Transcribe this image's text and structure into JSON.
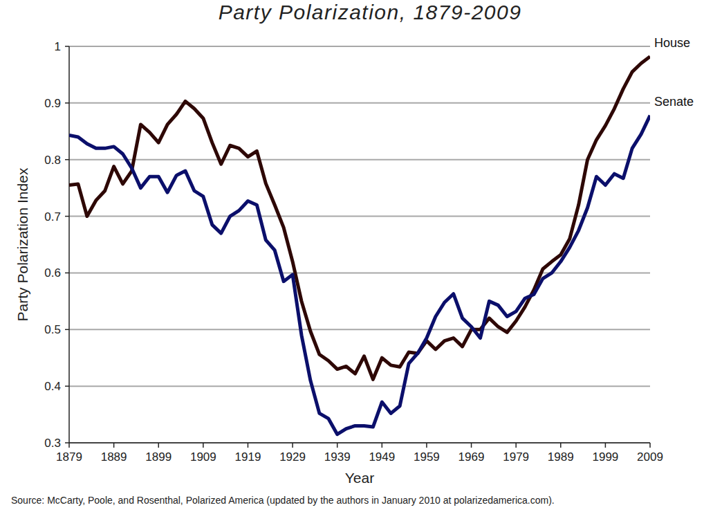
{
  "chart_data": {
    "type": "line",
    "title": "Party Polarization, 1879-2009",
    "x_label": "Year",
    "y_label": "Party Polarization Index",
    "source": "Source: McCarty, Poole, and Rosenthal, Polarized America (updated by the authors in January 2010 at polarizedamerica.com).",
    "x": [
      1879,
      1881,
      1883,
      1885,
      1887,
      1889,
      1891,
      1893,
      1895,
      1897,
      1899,
      1901,
      1903,
      1905,
      1907,
      1909,
      1911,
      1913,
      1915,
      1917,
      1919,
      1921,
      1923,
      1925,
      1927,
      1929,
      1931,
      1933,
      1935,
      1937,
      1939,
      1941,
      1943,
      1945,
      1947,
      1949,
      1951,
      1953,
      1955,
      1957,
      1959,
      1961,
      1963,
      1965,
      1967,
      1969,
      1971,
      1973,
      1975,
      1977,
      1979,
      1981,
      1983,
      1985,
      1987,
      1989,
      1991,
      1993,
      1995,
      1997,
      1999,
      2001,
      2003,
      2005,
      2007,
      2009
    ],
    "series": [
      {
        "name": "House",
        "color": "#2e0806",
        "values": [
          0.755,
          0.757,
          0.7,
          0.728,
          0.745,
          0.788,
          0.757,
          0.78,
          0.862,
          0.848,
          0.83,
          0.862,
          0.88,
          0.903,
          0.89,
          0.873,
          0.83,
          0.792,
          0.825,
          0.82,
          0.805,
          0.815,
          0.758,
          0.72,
          0.68,
          0.62,
          0.55,
          0.497,
          0.456,
          0.445,
          0.43,
          0.435,
          0.422,
          0.453,
          0.412,
          0.45,
          0.437,
          0.434,
          0.46,
          0.458,
          0.48,
          0.465,
          0.48,
          0.485,
          0.47,
          0.5,
          0.5,
          0.52,
          0.505,
          0.495,
          0.515,
          0.54,
          0.57,
          0.607,
          0.62,
          0.632,
          0.66,
          0.72,
          0.8,
          0.835,
          0.86,
          0.89,
          0.925,
          0.955,
          0.97,
          0.982
        ]
      },
      {
        "name": "Senate",
        "color": "#0b0f6b",
        "values": [
          0.843,
          0.84,
          0.828,
          0.82,
          0.82,
          0.823,
          0.81,
          0.785,
          0.75,
          0.77,
          0.77,
          0.742,
          0.772,
          0.78,
          0.745,
          0.735,
          0.685,
          0.67,
          0.7,
          0.71,
          0.727,
          0.72,
          0.658,
          0.64,
          0.585,
          0.597,
          0.49,
          0.41,
          0.352,
          0.343,
          0.315,
          0.325,
          0.33,
          0.33,
          0.328,
          0.372,
          0.352,
          0.365,
          0.44,
          0.458,
          0.485,
          0.523,
          0.548,
          0.563,
          0.52,
          0.505,
          0.485,
          0.55,
          0.543,
          0.523,
          0.532,
          0.555,
          0.562,
          0.59,
          0.6,
          0.62,
          0.645,
          0.675,
          0.715,
          0.77,
          0.755,
          0.775,
          0.767,
          0.82,
          0.845,
          0.878
        ]
      }
    ],
    "xlim": [
      1879,
      2009
    ],
    "xticks": [
      1879,
      1889,
      1899,
      1909,
      1919,
      1929,
      1939,
      1949,
      1959,
      1969,
      1979,
      1989,
      1999,
      2009
    ],
    "ylim": [
      0.3,
      1
    ],
    "yticks": [
      0.3,
      0.4,
      0.5,
      0.6,
      0.7,
      0.8,
      0.9,
      1
    ],
    "grid": true
  }
}
